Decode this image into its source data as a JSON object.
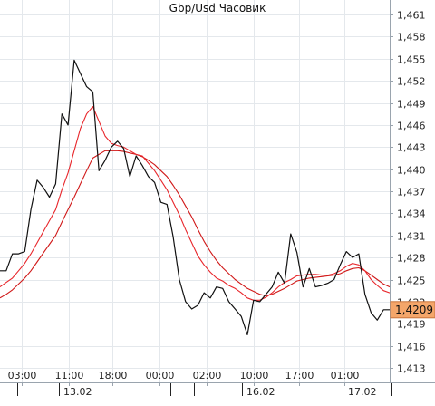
{
  "chart_data": {
    "type": "line",
    "title": "Gbp/Usd Часовик",
    "xlabel": "",
    "ylabel": "",
    "ylim": [
      1.413,
      1.461
    ],
    "y_ticks": [
      "1,461",
      "1,458",
      "1,455",
      "1,452",
      "1,449",
      "1,446",
      "1,443",
      "1,440",
      "1,437",
      "1,434",
      "1,431",
      "1,428",
      "1,425",
      "1,422",
      "1,419",
      "1,416",
      "1,413"
    ],
    "x_ticks": [
      "03:00",
      "11:00",
      "18:00",
      "00:00",
      "02:00",
      "10:00",
      "17:00",
      "01:00"
    ],
    "date_labels": [
      "13.02",
      "16.02",
      "17.02"
    ],
    "last_price_label": "1,4209",
    "grid": true,
    "colors": {
      "price": "#111111",
      "ma_fast": "#e8262b",
      "ma_slow": "#d01818",
      "grid": "#e4e8ec",
      "price_tag": "#f4a66a",
      "axis_text": "#222222"
    },
    "series": [
      {
        "role": "price",
        "color": "#111111",
        "values": [
          1.4262,
          1.4262,
          1.4285,
          1.4285,
          1.4288,
          1.4345,
          1.4385,
          1.4375,
          1.4362,
          1.438,
          1.4475,
          1.446,
          1.4548,
          1.453,
          1.4512,
          1.4505,
          1.4398,
          1.4412,
          1.443,
          1.4438,
          1.4428,
          1.439,
          1.4418,
          1.4405,
          1.439,
          1.4382,
          1.4355,
          1.4352,
          1.4308,
          1.425,
          1.422,
          1.421,
          1.4215,
          1.4232,
          1.4225,
          1.424,
          1.4238,
          1.422,
          1.421,
          1.42,
          1.4175,
          1.4222,
          1.422,
          1.423,
          1.424,
          1.426,
          1.4245,
          1.4312,
          1.4287,
          1.424,
          1.4265,
          1.424,
          1.4242,
          1.4245,
          1.425,
          1.427,
          1.4288,
          1.428,
          1.4285,
          1.423,
          1.4205,
          1.4195,
          1.4209,
          1.4209
        ]
      },
      {
        "role": "moving-average",
        "color": "#e8262b",
        "values": [
          1.424,
          1.4246,
          1.4252,
          1.4262,
          1.4272,
          1.4285,
          1.43,
          1.4315,
          1.433,
          1.4345,
          1.4372,
          1.4395,
          1.4425,
          1.4455,
          1.4475,
          1.4485,
          1.4465,
          1.4445,
          1.4435,
          1.4432,
          1.443,
          1.4425,
          1.442,
          1.4418,
          1.4408,
          1.4398,
          1.4385,
          1.4372,
          1.4355,
          1.4338,
          1.4318,
          1.43,
          1.4282,
          1.427,
          1.426,
          1.4252,
          1.4248,
          1.4242,
          1.4238,
          1.4232,
          1.4225,
          1.4222,
          1.4222,
          1.4226,
          1.4232,
          1.424,
          1.4246,
          1.425,
          1.4255,
          1.4256,
          1.4257,
          1.4257,
          1.4256,
          1.4256,
          1.4258,
          1.4262,
          1.4268,
          1.4272,
          1.427,
          1.4262,
          1.425,
          1.4242,
          1.4235,
          1.4232
        ]
      },
      {
        "role": "moving-average",
        "color": "#d01818",
        "values": [
          1.4225,
          1.423,
          1.4236,
          1.4244,
          1.4252,
          1.4262,
          1.4274,
          1.4286,
          1.4298,
          1.431,
          1.4328,
          1.4345,
          1.4362,
          1.438,
          1.4398,
          1.4415,
          1.442,
          1.4425,
          1.4425,
          1.4425,
          1.4424,
          1.4422,
          1.442,
          1.4417,
          1.4412,
          1.4406,
          1.4398,
          1.439,
          1.4378,
          1.4365,
          1.435,
          1.4335,
          1.4318,
          1.4302,
          1.4288,
          1.4276,
          1.4266,
          1.4258,
          1.425,
          1.4244,
          1.4238,
          1.4234,
          1.423,
          1.4228,
          1.423,
          1.4234,
          1.4238,
          1.4243,
          1.4248,
          1.425,
          1.4252,
          1.4253,
          1.4254,
          1.4255,
          1.4256,
          1.4258,
          1.4262,
          1.4265,
          1.4266,
          1.4262,
          1.4256,
          1.425,
          1.4244,
          1.424
        ]
      }
    ]
  }
}
